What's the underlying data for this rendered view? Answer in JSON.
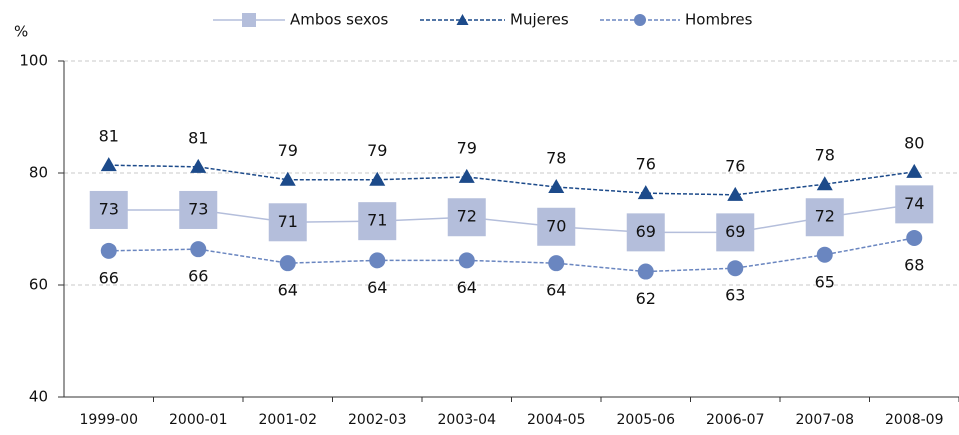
{
  "chart_data": {
    "type": "line",
    "y_axis_label": "%",
    "categories": [
      "1999-00",
      "2000-01",
      "2001-02",
      "2002-03",
      "2003-04",
      "2004-05",
      "2005-06",
      "2006-07",
      "2007-08",
      "2008-09"
    ],
    "series": [
      {
        "name": "Ambos sexos",
        "color": "#b4bedb",
        "line_color": "#b4bedb",
        "marker": "square",
        "dashed": false,
        "label_position": "center",
        "values": [
          73.4,
          73.4,
          71.2,
          71.4,
          72.1,
          70.4,
          69.4,
          69.4,
          72.1,
          74.4
        ],
        "value_labels": [
          "73",
          "73",
          "71",
          "71",
          "72",
          "70",
          "69",
          "69",
          "72",
          "74"
        ]
      },
      {
        "name": "Mujeres",
        "color": "#1c4a8a",
        "line_color": "#1c4a8a",
        "marker": "triangle",
        "dashed": true,
        "label_position": "above",
        "values": [
          81.4,
          81.1,
          78.8,
          78.8,
          79.3,
          77.5,
          76.4,
          76.1,
          78.0,
          80.2
        ],
        "value_labels": [
          "81",
          "81",
          "79",
          "79",
          "79",
          "78",
          "76",
          "76",
          "78",
          "80"
        ]
      },
      {
        "name": "Hombres",
        "color": "#6a86c0",
        "line_color": "#6a86c0",
        "marker": "circle",
        "dashed": true,
        "label_position": "below",
        "values": [
          66.1,
          66.4,
          63.9,
          64.4,
          64.4,
          63.9,
          62.4,
          63.0,
          65.4,
          68.4
        ],
        "value_labels": [
          "66",
          "66",
          "64",
          "64",
          "64",
          "64",
          "62",
          "63",
          "65",
          "68"
        ]
      }
    ],
    "ylim": [
      40,
      100
    ],
    "yticks": [
      40,
      60,
      80,
      100
    ],
    "grid": true,
    "legend": "top"
  }
}
